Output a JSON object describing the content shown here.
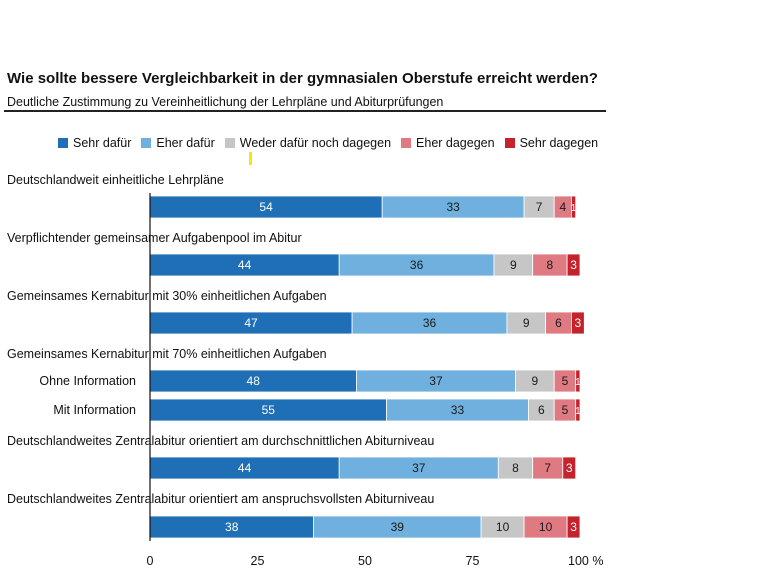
{
  "chart_data": {
    "type": "bar",
    "orientation": "horizontal",
    "stacked": true,
    "title": "Wie sollte bessere Vergleichbarkeit in der gymnasialen Oberstufe erreicht werden?",
    "subtitle": "Deutliche Zustimmung zu Vereinheitlichung der Lehrpläne und Abiturprüfungen",
    "xlim": [
      0,
      100
    ],
    "x_ticks": [
      "0",
      "25",
      "50",
      "75",
      "100 %"
    ],
    "legend_position": "top",
    "series": [
      {
        "name": "Sehr dafür",
        "color": "#1f6fb6"
      },
      {
        "name": "Eher dafür",
        "color": "#6fb0de"
      },
      {
        "name": "Weder dafür noch dagegen",
        "color": "#c6c6c6"
      },
      {
        "name": "Eher dagegen",
        "color": "#e07a82"
      },
      {
        "name": "Sehr dagegen",
        "color": "#c4232c"
      }
    ],
    "headings": [
      "Deutschlandweit einheitliche Lehrpläne",
      "Verpflichtender gemeinsamer Aufgabenpool im Abitur",
      "Gemeinsames Kernabitur mit 30% einheitlichen Aufgaben",
      "Gemeinsames Kernabitur mit 70% einheitlichen Aufgaben",
      "Deutschlandweites Zentralabitur orientiert am durchschnittlichen Abiturniveau",
      "Deutschlandweites Zentralabitur orientiert am anspruchsvollsten Abiturniveau"
    ],
    "rows": [
      {
        "label": "",
        "values": [
          54,
          33,
          7,
          4,
          1
        ]
      },
      {
        "label": "",
        "values": [
          44,
          36,
          9,
          8,
          3
        ]
      },
      {
        "label": "",
        "values": [
          47,
          36,
          9,
          6,
          3
        ]
      },
      {
        "label": "Ohne Information",
        "values": [
          48,
          37,
          9,
          5,
          1
        ]
      },
      {
        "label": "Mit Information",
        "values": [
          55,
          33,
          6,
          5,
          1
        ]
      },
      {
        "label": "",
        "values": [
          44,
          37,
          8,
          7,
          3
        ]
      },
      {
        "label": "",
        "values": [
          38,
          39,
          10,
          10,
          3
        ]
      }
    ]
  }
}
